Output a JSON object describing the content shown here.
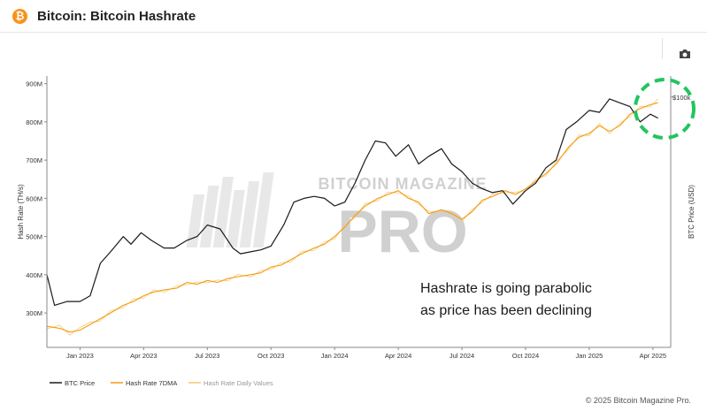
{
  "header": {
    "logo_glyph": "₿",
    "title": "Bitcoin: Bitcoin Hashrate"
  },
  "toolbar": {
    "screenshot_icon": "camera-icon"
  },
  "footer": {
    "copyright": "© 2025 Bitcoin Magazine Pro."
  },
  "colors": {
    "btc_price": "#1a1a1a",
    "hash_7dma": "#f39c12",
    "hash_daily": "#f7c873",
    "highlight_circle": "#22c55e",
    "logo": "#f7931a"
  },
  "chart_data": {
    "type": "line",
    "title": "Bitcoin: Bitcoin Hashrate",
    "ylabel_left": "Hash Rate (TH/s)",
    "ylabel_right": "BTC Price (USD)",
    "x_ticks": [
      "Jan 2023",
      "Apr 2023",
      "Jul 2023",
      "Oct 2023",
      "Jan 2024",
      "Apr 2024",
      "Jul 2024",
      "Oct 2024",
      "Jan 2025",
      "Apr 2025"
    ],
    "x_tick_pos": [
      2023.0,
      2023.25,
      2023.5,
      2023.75,
      2024.0,
      2024.25,
      2024.5,
      2024.75,
      2025.0,
      2025.25
    ],
    "x_range": [
      2022.87,
      2025.32
    ],
    "y_left_ticks": [
      "300M",
      "400M",
      "500M",
      "600M",
      "700M",
      "800M",
      "900M"
    ],
    "y_left_values": [
      300,
      400,
      500,
      600,
      700,
      800,
      900
    ],
    "y_left_range": [
      210,
      920
    ],
    "y_right_label": "$100k",
    "y_right_value": 100000,
    "legend": [
      "BTC Price",
      "Hash Rate 7DMA",
      "Hash Rate Daily Values"
    ],
    "annotation": [
      "Hashrate is going parabolic",
      "as price has been declining"
    ],
    "watermark": [
      "BITCOIN MAGAZINE",
      "PRO"
    ],
    "series": [
      {
        "name": "BTC Price",
        "axis": "left_scaled",
        "x": [
          2022.87,
          2022.9,
          2022.95,
          2023.0,
          2023.04,
          2023.08,
          2023.12,
          2023.17,
          2023.2,
          2023.24,
          2023.28,
          2023.33,
          2023.37,
          2023.42,
          2023.46,
          2023.5,
          2023.55,
          2023.6,
          2023.63,
          2023.67,
          2023.71,
          2023.75,
          2023.8,
          2023.84,
          2023.88,
          2023.92,
          2023.96,
          2024.0,
          2024.04,
          2024.08,
          2024.12,
          2024.16,
          2024.2,
          2024.24,
          2024.29,
          2024.33,
          2024.37,
          2024.42,
          2024.46,
          2024.5,
          2024.54,
          2024.58,
          2024.62,
          2024.66,
          2024.7,
          2024.75,
          2024.79,
          2024.83,
          2024.87,
          2024.91,
          2024.95,
          2025.0,
          2025.04,
          2025.08,
          2025.12,
          2025.16,
          2025.2,
          2025.24,
          2025.27
        ],
        "values": [
          400,
          320,
          330,
          330,
          345,
          430,
          460,
          500,
          480,
          510,
          490,
          470,
          470,
          490,
          500,
          530,
          520,
          470,
          455,
          460,
          465,
          475,
          530,
          590,
          600,
          605,
          600,
          580,
          590,
          640,
          700,
          750,
          745,
          710,
          740,
          690,
          710,
          730,
          690,
          670,
          640,
          625,
          615,
          620,
          585,
          620,
          640,
          680,
          700,
          780,
          800,
          830,
          825,
          860,
          850,
          840,
          800,
          820,
          810
        ]
      },
      {
        "name": "Hash Rate 7DMA",
        "axis": "left",
        "x": [
          2022.87,
          2022.92,
          2022.96,
          2023.0,
          2023.04,
          2023.08,
          2023.12,
          2023.17,
          2023.21,
          2023.25,
          2023.29,
          2023.33,
          2023.38,
          2023.42,
          2023.46,
          2023.5,
          2023.54,
          2023.58,
          2023.62,
          2023.67,
          2023.71,
          2023.75,
          2023.79,
          2023.83,
          2023.87,
          2023.92,
          2023.96,
          2024.0,
          2024.04,
          2024.08,
          2024.12,
          2024.17,
          2024.21,
          2024.25,
          2024.29,
          2024.33,
          2024.37,
          2024.42,
          2024.46,
          2024.5,
          2024.54,
          2024.58,
          2024.62,
          2024.67,
          2024.71,
          2024.75,
          2024.79,
          2024.83,
          2024.87,
          2024.92,
          2024.96,
          2025.0,
          2025.04,
          2025.08,
          2025.12,
          2025.16,
          2025.2,
          2025.24,
          2025.27
        ],
        "values": [
          265,
          260,
          250,
          255,
          270,
          285,
          300,
          320,
          330,
          345,
          355,
          360,
          365,
          380,
          375,
          385,
          380,
          390,
          395,
          400,
          405,
          420,
          425,
          440,
          455,
          470,
          480,
          500,
          525,
          555,
          580,
          600,
          610,
          620,
          600,
          590,
          560,
          570,
          560,
          545,
          565,
          595,
          605,
          620,
          610,
          625,
          645,
          665,
          690,
          735,
          760,
          770,
          790,
          775,
          790,
          820,
          835,
          845,
          850
        ]
      },
      {
        "name": "Hash Rate Daily Values",
        "axis": "left",
        "x": [
          2022.87,
          2022.92,
          2022.96,
          2023.0,
          2023.04,
          2023.08,
          2023.12,
          2023.17,
          2023.21,
          2023.25,
          2023.29,
          2023.33,
          2023.38,
          2023.42,
          2023.46,
          2023.5,
          2023.54,
          2023.58,
          2023.62,
          2023.67,
          2023.71,
          2023.75,
          2023.79,
          2023.83,
          2023.87,
          2023.92,
          2023.96,
          2024.0,
          2024.04,
          2024.08,
          2024.12,
          2024.17,
          2024.21,
          2024.25,
          2024.29,
          2024.33,
          2024.37,
          2024.42,
          2024.46,
          2024.5,
          2024.54,
          2024.58,
          2024.62,
          2024.67,
          2024.71,
          2024.75,
          2024.79,
          2024.83,
          2024.87,
          2024.92,
          2024.96,
          2025.0,
          2025.04,
          2025.08,
          2025.12,
          2025.16,
          2025.2,
          2025.24,
          2025.27
        ],
        "values": [
          258,
          268,
          242,
          262,
          276,
          279,
          306,
          314,
          336,
          339,
          361,
          354,
          371,
          374,
          381,
          379,
          386,
          384,
          401,
          394,
          411,
          414,
          431,
          434,
          461,
          464,
          486,
          494,
          531,
          549,
          586,
          594,
          616,
          614,
          606,
          584,
          566,
          564,
          566,
          539,
          571,
          589,
          611,
          614,
          616,
          619,
          651,
          659,
          696,
          729,
          766,
          764,
          796,
          769,
          796,
          814,
          841,
          839,
          860
        ]
      }
    ]
  }
}
